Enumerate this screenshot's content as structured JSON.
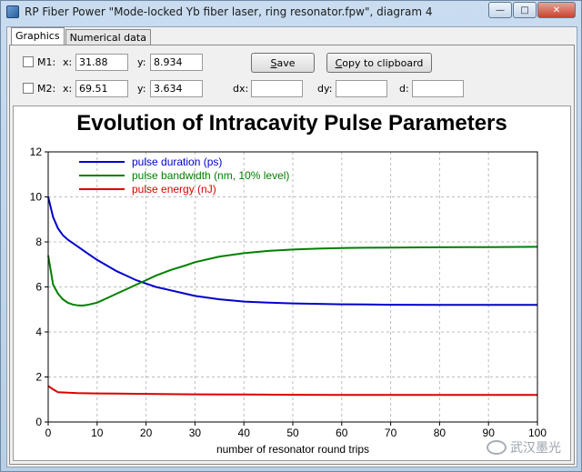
{
  "window": {
    "title": "RP Fiber Power \"Mode-locked Yb fiber laser, ring resonator.fpw\", diagram 4",
    "controls": {
      "minimize": "—",
      "maximize": "□",
      "close": "✕"
    }
  },
  "tabs": [
    {
      "label": "Graphics",
      "active": true
    },
    {
      "label": "Numerical data",
      "active": false
    }
  ],
  "markers": {
    "m1": {
      "label": "M1:",
      "x_label": "x:",
      "x_value": "31.88",
      "y_label": "y:",
      "y_value": "8.934",
      "checked": false
    },
    "m2": {
      "label": "M2:",
      "x_label": "x:",
      "x_value": "69.51",
      "y_label": "y:",
      "y_value": "3.634",
      "checked": false
    }
  },
  "buttons": {
    "save_first": "S",
    "save_rest": "ave",
    "copy_first": "C",
    "copy_rest": "opy to clipboard"
  },
  "deltas": {
    "dx_label": "dx:",
    "dx_value": "",
    "dy_label": "dy:",
    "dy_value": "",
    "d_label": "d:",
    "d_value": ""
  },
  "watermark": {
    "text": "武汉墨光",
    "icon": "wechat-icon"
  },
  "chart_data": {
    "type": "line",
    "title": "Evolution of Intracavity Pulse Parameters",
    "xlabel": "number of resonator round trips",
    "ylabel": "",
    "xlim": [
      0,
      100
    ],
    "ylim": [
      0,
      12
    ],
    "xticks": [
      0,
      10,
      20,
      30,
      40,
      50,
      60,
      70,
      80,
      90,
      100
    ],
    "yticks": [
      0,
      2,
      4,
      6,
      8,
      10,
      12
    ],
    "grid": true,
    "legend_position": "top-left",
    "series": [
      {
        "name": "pulse duration (ps)",
        "color": "#0000cc",
        "x": [
          0,
          1,
          2,
          3,
          4,
          5,
          6,
          7,
          8,
          10,
          12,
          14,
          16,
          18,
          20,
          22,
          25,
          28,
          30,
          35,
          40,
          45,
          50,
          55,
          60,
          65,
          70,
          80,
          90,
          100
        ],
        "y": [
          10.0,
          9.1,
          8.6,
          8.3,
          8.1,
          7.95,
          7.8,
          7.65,
          7.5,
          7.2,
          6.95,
          6.7,
          6.5,
          6.3,
          6.15,
          6.0,
          5.85,
          5.7,
          5.6,
          5.45,
          5.35,
          5.3,
          5.27,
          5.25,
          5.23,
          5.22,
          5.21,
          5.2,
          5.2,
          5.2
        ]
      },
      {
        "name": "pulse bandwidth (nm, 10% level)",
        "color": "#008000",
        "x": [
          0,
          1,
          2,
          3,
          4,
          5,
          6,
          7,
          8,
          10,
          12,
          14,
          16,
          18,
          20,
          22,
          25,
          28,
          30,
          35,
          40,
          45,
          50,
          55,
          60,
          65,
          70,
          80,
          90,
          100
        ],
        "y": [
          7.4,
          6.1,
          5.7,
          5.45,
          5.3,
          5.22,
          5.18,
          5.17,
          5.2,
          5.3,
          5.5,
          5.7,
          5.9,
          6.1,
          6.3,
          6.5,
          6.75,
          6.95,
          7.1,
          7.35,
          7.5,
          7.6,
          7.66,
          7.7,
          7.73,
          7.74,
          7.75,
          7.76,
          7.77,
          7.78
        ]
      },
      {
        "name": "pulse energy (nJ)",
        "color": "#dd0000",
        "x": [
          0,
          1,
          2,
          4,
          6,
          10,
          20,
          30,
          40,
          50,
          60,
          70,
          80,
          90,
          100
        ],
        "y": [
          1.6,
          1.45,
          1.32,
          1.3,
          1.28,
          1.27,
          1.25,
          1.23,
          1.22,
          1.21,
          1.2,
          1.2,
          1.2,
          1.2,
          1.2
        ]
      }
    ]
  }
}
